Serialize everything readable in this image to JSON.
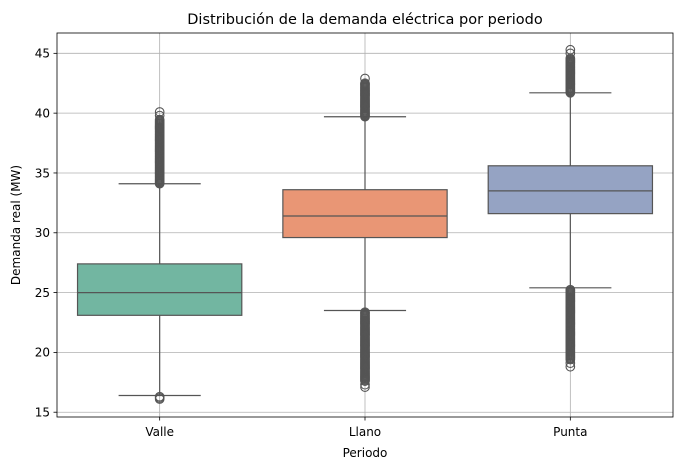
{
  "chart_data": {
    "type": "boxplot",
    "title": "Distribución de la demanda eléctrica por periodo",
    "xlabel": "Periodo",
    "ylabel": "Demanda real (MW)",
    "ylim": [
      14.6,
      46.7
    ],
    "yticks": [
      15,
      20,
      25,
      30,
      35,
      40,
      45
    ],
    "grid": true,
    "categories": [
      "Valle",
      "Llano",
      "Punta"
    ],
    "colors": [
      "#72b6a1",
      "#e99675",
      "#95a3c3"
    ],
    "edge_color": "#555555",
    "boxes": [
      {
        "name": "Valle",
        "whisker_low": 16.4,
        "q1": 23.1,
        "median": 25.0,
        "q3": 27.4,
        "whisker_high": 34.1,
        "outliers_low": [
          16.1,
          16.2,
          16.3
        ],
        "outliers_high_range": [
          34.1,
          39.5
        ],
        "outliers_high_extra": [
          39.8,
          40.1
        ]
      },
      {
        "name": "Llano",
        "whisker_low": 23.5,
        "q1": 29.6,
        "median": 31.4,
        "q3": 33.6,
        "whisker_high": 39.7,
        "outliers_low_range": [
          17.6,
          23.4
        ],
        "outliers_low_extra": [
          17.1,
          17.3
        ],
        "outliers_high_range": [
          39.7,
          42.5
        ],
        "outliers_high_extra": [
          42.9
        ]
      },
      {
        "name": "Punta",
        "whisker_low": 25.4,
        "q1": 31.6,
        "median": 33.5,
        "q3": 35.6,
        "whisker_high": 41.7,
        "outliers_low_range": [
          19.4,
          25.3
        ],
        "outliers_low_extra": [
          18.8,
          19.1
        ],
        "outliers_high_range": [
          41.7,
          44.6
        ],
        "outliers_high_extra": [
          45.0,
          45.3
        ]
      }
    ]
  }
}
